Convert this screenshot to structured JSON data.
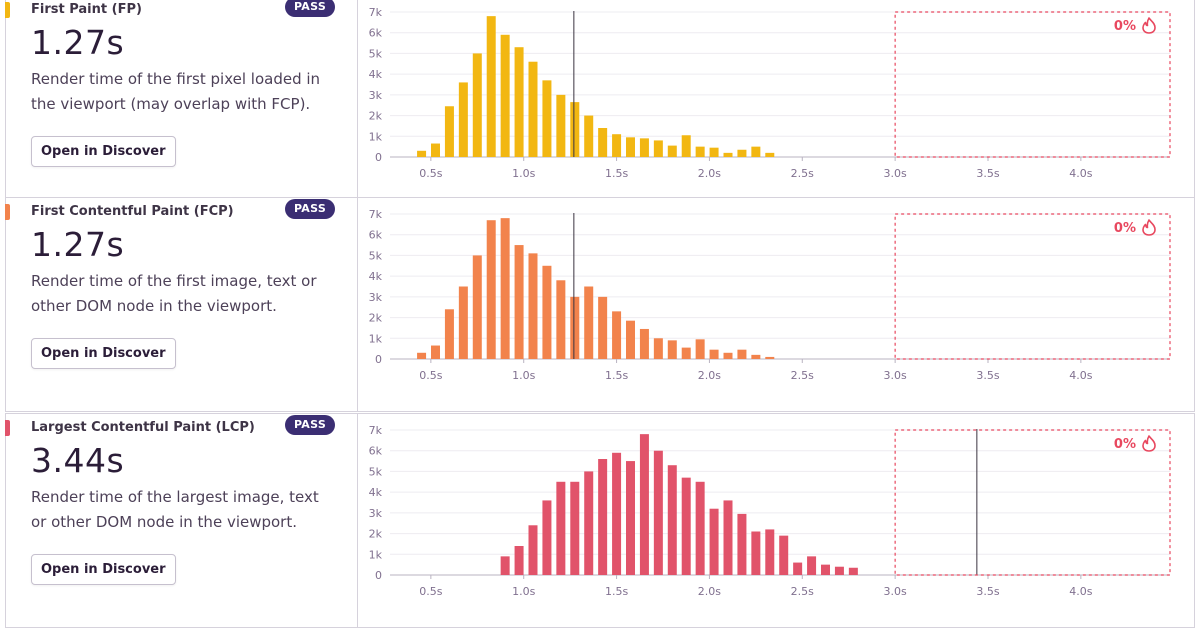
{
  "x_ticks": [
    "0.5s",
    "1.0s",
    "1.5s",
    "2.0s",
    "2.5s",
    "3.0s",
    "3.5s",
    "4.0s"
  ],
  "y_ticks": [
    "7k",
    "6k",
    "5k",
    "4k",
    "3k",
    "2k",
    "1k",
    "0"
  ],
  "panels": [
    {
      "title": "First Paint (FP)",
      "badge": "PASS",
      "value": "1.27s",
      "description": "Render time of the first pixel loaded in the viewport (may overlap with FCP).",
      "button": "Open in Discover",
      "color": "#f2b712",
      "fail_label": "0%",
      "chart_data": {
        "type": "bar",
        "x": [
          0.45,
          0.525,
          0.6,
          0.675,
          0.75,
          0.825,
          0.9,
          0.975,
          1.05,
          1.125,
          1.2,
          1.275,
          1.35,
          1.425,
          1.5,
          1.575,
          1.65,
          1.725,
          1.8,
          1.875,
          1.95,
          2.025,
          2.1,
          2.175,
          2.25,
          2.325
        ],
        "values": [
          300,
          650,
          2450,
          3600,
          5000,
          6800,
          5900,
          5300,
          4600,
          3700,
          3000,
          2650,
          2000,
          1400,
          1100,
          950,
          900,
          800,
          550,
          1050,
          500,
          450,
          200,
          350,
          500,
          200
        ],
        "marker_x": 1.27,
        "fail_region_start": 3.0,
        "ylim": [
          0,
          7000
        ],
        "xlim": [
          0.28,
          4.48
        ]
      }
    },
    {
      "title": "First Contentful Paint (FCP)",
      "badge": "PASS",
      "value": "1.27s",
      "description": "Render time of the first image, text or other DOM node in the viewport.",
      "button": "Open in Discover",
      "color": "#f2834c",
      "fail_label": "0%",
      "chart_data": {
        "type": "bar",
        "x": [
          0.45,
          0.525,
          0.6,
          0.675,
          0.75,
          0.825,
          0.9,
          0.975,
          1.05,
          1.125,
          1.2,
          1.275,
          1.35,
          1.425,
          1.5,
          1.575,
          1.65,
          1.725,
          1.8,
          1.875,
          1.95,
          2.025,
          2.1,
          2.175,
          2.25,
          2.325
        ],
        "values": [
          300,
          650,
          2400,
          3500,
          5000,
          6700,
          6800,
          5500,
          5100,
          4500,
          3800,
          3000,
          3500,
          3000,
          2300,
          1850,
          1450,
          1000,
          900,
          550,
          950,
          450,
          300,
          450,
          200,
          100
        ],
        "marker_x": 1.27,
        "fail_region_start": 3.0,
        "ylim": [
          0,
          7000
        ],
        "xlim": [
          0.28,
          4.48
        ]
      }
    },
    {
      "title": "Largest Contentful Paint (LCP)",
      "badge": "PASS",
      "value": "3.44s",
      "description": "Render time of the largest image, text or other DOM node in the viewport.",
      "button": "Open in Discover",
      "color": "#e1536a",
      "fail_label": "0%",
      "chart_data": {
        "type": "bar",
        "x": [
          0.9,
          0.975,
          1.05,
          1.125,
          1.2,
          1.275,
          1.35,
          1.425,
          1.5,
          1.575,
          1.65,
          1.725,
          1.8,
          1.875,
          1.95,
          2.025,
          2.1,
          2.175,
          2.25,
          2.325,
          2.4,
          2.475,
          2.55,
          2.625,
          2.7,
          2.775
        ],
        "values": [
          900,
          1400,
          2400,
          3600,
          4500,
          4500,
          5000,
          5600,
          5900,
          5500,
          6800,
          6000,
          5300,
          4700,
          4500,
          3200,
          3600,
          2950,
          2100,
          2200,
          1900,
          600,
          900,
          500,
          400,
          350
        ],
        "marker_x": 3.44,
        "fail_region_start": 3.0,
        "ylim": [
          0,
          7000
        ],
        "xlim": [
          0.28,
          4.48
        ]
      }
    }
  ]
}
